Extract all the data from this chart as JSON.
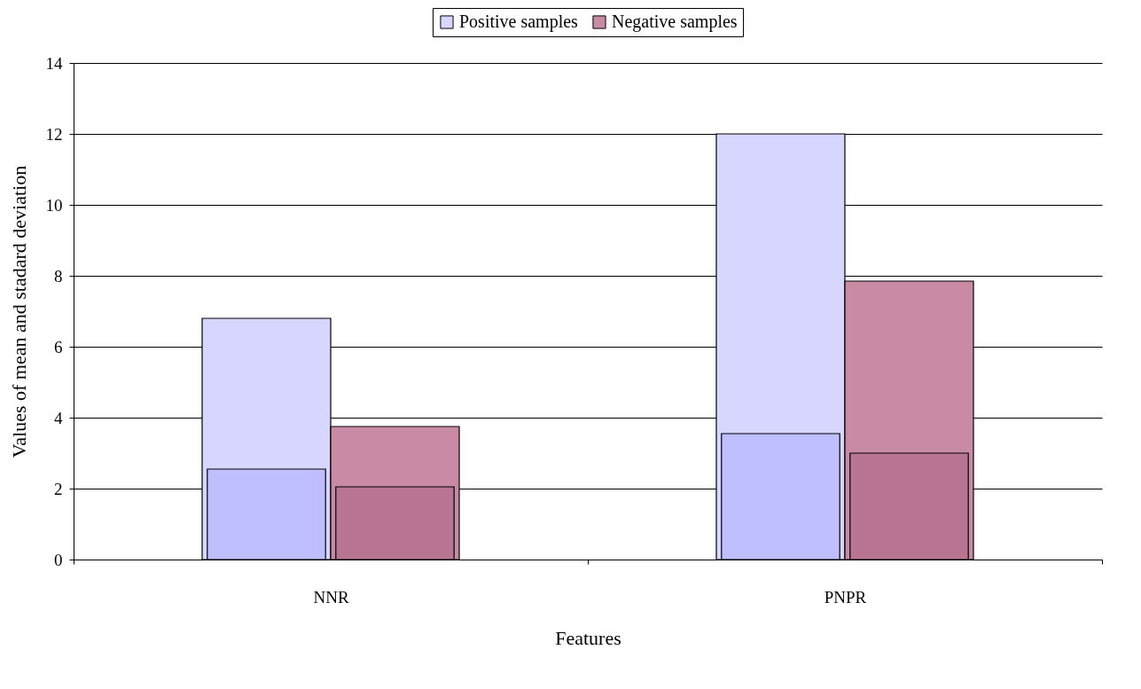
{
  "chart_data": {
    "type": "bar",
    "xlabel": "Features",
    "ylabel": "Values of mean and stadard deviation",
    "categories": [
      "NNR",
      "PNPR"
    ],
    "series": [
      {
        "name": "Positive samples",
        "color": "#d6d6ff",
        "values": [
          6.8,
          12.0
        ]
      },
      {
        "name": "Negative samples",
        "color": "#c98aa6",
        "values": [
          3.75,
          7.85
        ]
      },
      {
        "color": "#bfbfff",
        "values": [
          2.55,
          3.55
        ]
      },
      {
        "color": "#b97594",
        "values": [
          2.05,
          3.0
        ]
      }
    ],
    "ylim": [
      0,
      14
    ],
    "yticks": [
      0,
      2,
      4,
      6,
      8,
      10,
      12,
      14
    ],
    "grid": "y",
    "legend": "top"
  }
}
